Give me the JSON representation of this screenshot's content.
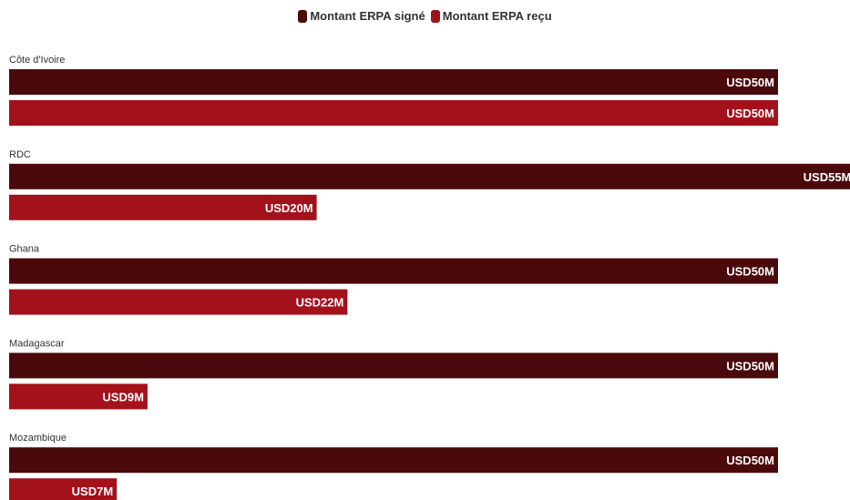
{
  "chart_data": {
    "type": "bar",
    "orientation": "horizontal",
    "categories": [
      "Côte d'Ivoire",
      "RDC",
      "Ghana",
      "Madagascar",
      "Mozambique"
    ],
    "series": [
      {
        "name": "Montant ERPA signé",
        "values": [
          50,
          55,
          50,
          50,
          50
        ],
        "labels": [
          "USD50M",
          "USD55M",
          "USD50M",
          "USD50M",
          "USD50M"
        ],
        "color": "#4a0a0c"
      },
      {
        "name": "Montant ERPA reçu",
        "values": [
          50,
          20,
          22,
          9,
          7
        ],
        "labels": [
          "USD50M",
          "USD20M",
          "USD22M",
          "USD9M",
          "USD7M"
        ],
        "color": "#a3111b"
      }
    ],
    "legend_position": "top-center",
    "grid": false
  }
}
